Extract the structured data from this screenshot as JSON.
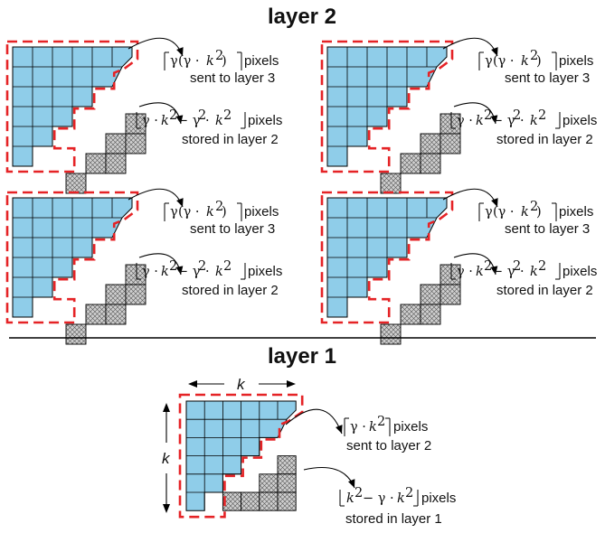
{
  "title_top": "layer 2",
  "title_bottom": "layer 1",
  "colors": {
    "cell": "#8fcde9",
    "stored": "#c8c8c8",
    "boundary": "#e52326",
    "line": "#000000"
  },
  "layer2": {
    "sent": {
      "expr": "⌈γ(γ·k²)⌉",
      "unit": "pixels",
      "caption": "sent to layer 3"
    },
    "stored": {
      "expr": "⌊γ·k² − γ²·k²⌋",
      "unit": "pixels",
      "caption": "stored in layer 2"
    }
  },
  "layer1": {
    "dim_label": "k",
    "sent": {
      "expr": "⌈γ·k²⌉",
      "unit": "pixels",
      "caption": "sent to layer 2"
    },
    "stored": {
      "expr": "⌊k² − γ·k²⌋",
      "unit": "pixels",
      "caption": "stored in layer 1"
    }
  }
}
